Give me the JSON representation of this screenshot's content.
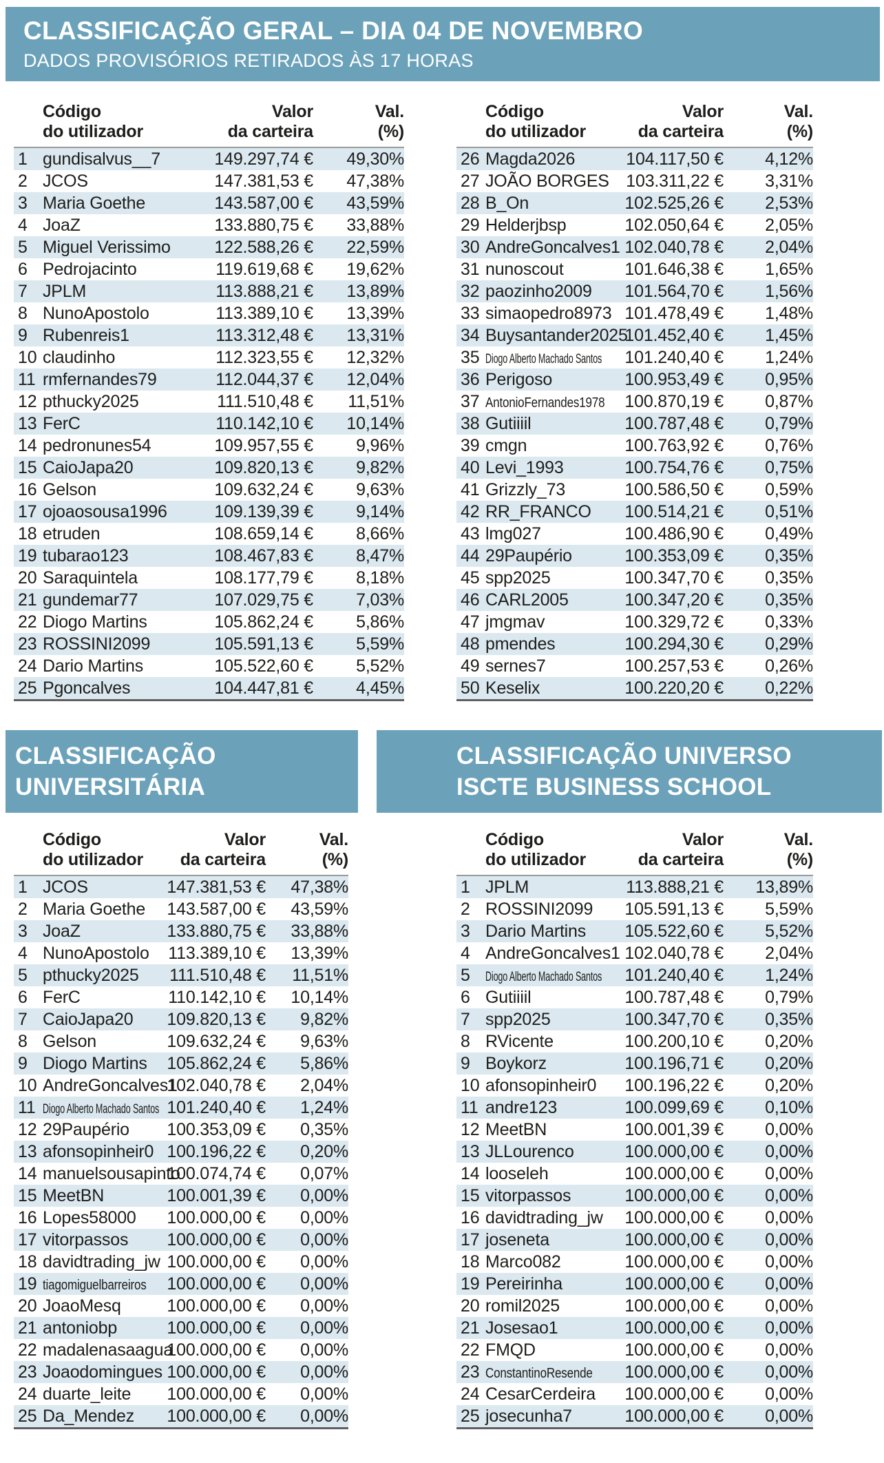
{
  "colors": {
    "header_band": "#6BA2BA",
    "row_stripe": "#DBE8F0",
    "text": "#1D1D1B",
    "rule_light": "#9A9A9A",
    "rule_dark": "#5F5F5F"
  },
  "banner": {
    "title": "CLASSIFICAÇÃO GERAL – DIA 04 DE NOVEMBRO",
    "subtitle": "DADOS PROVISÓRIOS RETIRADOS ÀS 17 HORAS"
  },
  "columns": {
    "c1a": "Código",
    "c1b": "do utilizador",
    "c2a": "Valor",
    "c2b": "da carteira",
    "c3a": "Val.",
    "c3b": "(%)"
  },
  "sections": {
    "universitaria": {
      "title_l1": "CLASSIFICAÇÃO",
      "title_l2": "UNIVERSITÁRIA"
    },
    "iscte": {
      "title_l1": "CLASSIFICAÇÃO UNIVERSO",
      "title_l2": "ISCTE BUSINESS SCHOOL"
    }
  },
  "tables": {
    "geral_1_25": {
      "rows": [
        [
          1,
          "gundisalvus__7",
          "149.297,74 €",
          "49,30%"
        ],
        [
          2,
          "JCOS",
          "147.381,53 €",
          "47,38%"
        ],
        [
          3,
          "Maria Goethe",
          "143.587,00 €",
          "43,59%"
        ],
        [
          4,
          "JoaZ",
          "133.880,75 €",
          "33,88%"
        ],
        [
          5,
          "Miguel Verissimo",
          "122.588,26 €",
          "22,59%"
        ],
        [
          6,
          "Pedrojacinto",
          "119.619,68 €",
          "19,62%"
        ],
        [
          7,
          "JPLM",
          "113.888,21 €",
          "13,89%"
        ],
        [
          8,
          "NunoApostolo",
          "113.389,10 €",
          "13,39%"
        ],
        [
          9,
          "Rubenreis1",
          "113.312,48 €",
          "13,31%"
        ],
        [
          10,
          "claudinho",
          "112.323,55 €",
          "12,32%"
        ],
        [
          11,
          "rmfernandes79",
          "112.044,37 €",
          "12,04%"
        ],
        [
          12,
          "pthucky2025",
          "111.510,48 €",
          "11,51%"
        ],
        [
          13,
          "FerC",
          "110.142,10 €",
          "10,14%"
        ],
        [
          14,
          "pedronunes54",
          "109.957,55 €",
          "9,96%"
        ],
        [
          15,
          "CaioJapa20",
          "109.820,13 €",
          "9,82%"
        ],
        [
          16,
          "Gelson",
          "109.632,24 €",
          "9,63%"
        ],
        [
          17,
          "ojoaosousa1996",
          "109.139,39 €",
          "9,14%"
        ],
        [
          18,
          "etruden",
          "108.659,14 €",
          "8,66%"
        ],
        [
          19,
          "tubarao123",
          "108.467,83 €",
          "8,47%"
        ],
        [
          20,
          "Saraquintela",
          "108.177,79 €",
          "8,18%"
        ],
        [
          21,
          "gundemar77",
          "107.029,75 €",
          "7,03%"
        ],
        [
          22,
          "Diogo Martins",
          "105.862,24 €",
          "5,86%"
        ],
        [
          23,
          "ROSSINI2099",
          "105.591,13 €",
          "5,59%"
        ],
        [
          24,
          "Dario Martins",
          "105.522,60 €",
          "5,52%"
        ],
        [
          25,
          "Pgoncalves",
          "104.447,81 €",
          "4,45%"
        ]
      ]
    },
    "geral_26_50": {
      "rows": [
        [
          26,
          "Magda2026",
          "104.117,50 €",
          "4,12%"
        ],
        [
          27,
          "JOÃO BORGES",
          "103.311,22 €",
          "3,31%"
        ],
        [
          28,
          "B_On",
          "102.525,26 €",
          "2,53%"
        ],
        [
          29,
          "Helderjbsp",
          "102.050,64 €",
          "2,05%"
        ],
        [
          30,
          "AndreGoncalves1",
          "102.040,78 €",
          "2,04%"
        ],
        [
          31,
          "nunoscout",
          "101.646,38 €",
          "1,65%"
        ],
        [
          32,
          "paozinho2009",
          "101.564,70 €",
          "1,56%"
        ],
        [
          33,
          "simaopedro8973",
          "101.478,49 €",
          "1,48%"
        ],
        [
          34,
          "Buysantander2025",
          "101.452,40 €",
          "1,45%"
        ],
        [
          35,
          "Diogo Alberto Machado Santos",
          "101.240,40 €",
          "1,24%"
        ],
        [
          36,
          "Perigoso",
          "100.953,49 €",
          "0,95%"
        ],
        [
          37,
          "AntonioFernandes1978",
          "100.870,19 €",
          "0,87%"
        ],
        [
          38,
          "Gutiiiil",
          "100.787,48 €",
          "0,79%"
        ],
        [
          39,
          "cmgn",
          "100.763,92 €",
          "0,76%"
        ],
        [
          40,
          "Levi_1993",
          "100.754,76 €",
          "0,75%"
        ],
        [
          41,
          "Grizzly_73",
          "100.586,50 €",
          "0,59%"
        ],
        [
          42,
          "RR_FRANCO",
          "100.514,21 €",
          "0,51%"
        ],
        [
          43,
          "lmg027",
          "100.486,90 €",
          "0,49%"
        ],
        [
          44,
          "29Paupério",
          "100.353,09 €",
          "0,35%"
        ],
        [
          45,
          "spp2025",
          "100.347,70 €",
          "0,35%"
        ],
        [
          46,
          "CARL2005",
          "100.347,20 €",
          "0,35%"
        ],
        [
          47,
          "jmgmav",
          "100.329,72 €",
          "0,33%"
        ],
        [
          48,
          "pmendes",
          "100.294,30 €",
          "0,29%"
        ],
        [
          49,
          "sernes7",
          "100.257,53 €",
          "0,26%"
        ],
        [
          50,
          "Keselix",
          "100.220,20 €",
          "0,22%"
        ]
      ]
    },
    "universitaria": {
      "rows": [
        [
          1,
          "JCOS",
          "147.381,53 €",
          "47,38%"
        ],
        [
          2,
          "Maria Goethe",
          "143.587,00 €",
          "43,59%"
        ],
        [
          3,
          "JoaZ",
          "133.880,75 €",
          "33,88%"
        ],
        [
          4,
          "NunoApostolo",
          "113.389,10 €",
          "13,39%"
        ],
        [
          5,
          "pthucky2025",
          "111.510,48 €",
          "11,51%"
        ],
        [
          6,
          "FerC",
          "110.142,10 €",
          "10,14%"
        ],
        [
          7,
          "CaioJapa20",
          "109.820,13 €",
          "9,82%"
        ],
        [
          8,
          "Gelson",
          "109.632,24 €",
          "9,63%"
        ],
        [
          9,
          "Diogo Martins",
          "105.862,24 €",
          "5,86%"
        ],
        [
          10,
          "AndreGoncalves1",
          "102.040,78 €",
          "2,04%"
        ],
        [
          11,
          "Diogo Alberto Machado Santos",
          "101.240,40 €",
          "1,24%"
        ],
        [
          12,
          "29Paupério",
          "100.353,09 €",
          "0,35%"
        ],
        [
          13,
          "afonsopinheir0",
          "100.196,22 €",
          "0,20%"
        ],
        [
          14,
          "manuelsousapinto",
          "100.074,74 €",
          "0,07%"
        ],
        [
          15,
          "MeetBN",
          "100.001,39 €",
          "0,00%"
        ],
        [
          16,
          "Lopes58000",
          "100.000,00 €",
          "0,00%"
        ],
        [
          17,
          "vitorpassos",
          "100.000,00 €",
          "0,00%"
        ],
        [
          18,
          "davidtrading_jw",
          "100.000,00 €",
          "0,00%"
        ],
        [
          19,
          "tiagomiguelbarreiros",
          "100.000,00 €",
          "0,00%"
        ],
        [
          20,
          "JoaoMesq",
          "100.000,00 €",
          "0,00%"
        ],
        [
          21,
          "antoniobp",
          "100.000,00 €",
          "0,00%"
        ],
        [
          22,
          "madalenasaagua",
          "100.000,00 €",
          "0,00%"
        ],
        [
          23,
          "Joaodomingues",
          "100.000,00 €",
          "0,00%"
        ],
        [
          24,
          "duarte_leite",
          "100.000,00 €",
          "0,00%"
        ],
        [
          25,
          "Da_Mendez",
          "100.000,00 €",
          "0,00%"
        ]
      ]
    },
    "iscte": {
      "rows": [
        [
          1,
          "JPLM",
          "113.888,21 €",
          "13,89%"
        ],
        [
          2,
          "ROSSINI2099",
          "105.591,13 €",
          "5,59%"
        ],
        [
          3,
          "Dario Martins",
          "105.522,60 €",
          "5,52%"
        ],
        [
          4,
          "AndreGoncalves1",
          "102.040,78 €",
          "2,04%"
        ],
        [
          5,
          "Diogo Alberto Machado Santos",
          "101.240,40 €",
          "1,24%"
        ],
        [
          6,
          "Gutiiiil",
          "100.787,48 €",
          "0,79%"
        ],
        [
          7,
          "spp2025",
          "100.347,70 €",
          "0,35%"
        ],
        [
          8,
          "RVicente",
          "100.200,10 €",
          "0,20%"
        ],
        [
          9,
          "Boykorz",
          "100.196,71 €",
          "0,20%"
        ],
        [
          10,
          "afonsopinheir0",
          "100.196,22 €",
          "0,20%"
        ],
        [
          11,
          "andre123",
          "100.099,69 €",
          "0,10%"
        ],
        [
          12,
          "MeetBN",
          "100.001,39 €",
          "0,00%"
        ],
        [
          13,
          "JLLourenco",
          "100.000,00 €",
          "0,00%"
        ],
        [
          14,
          "looseleh",
          "100.000,00 €",
          "0,00%"
        ],
        [
          15,
          "vitorpassos",
          "100.000,00 €",
          "0,00%"
        ],
        [
          16,
          "davidtrading_jw",
          "100.000,00 €",
          "0,00%"
        ],
        [
          17,
          "joseneta",
          "100.000,00 €",
          "0,00%"
        ],
        [
          18,
          "Marco082",
          "100.000,00 €",
          "0,00%"
        ],
        [
          19,
          "Pereirinha",
          "100.000,00 €",
          "0,00%"
        ],
        [
          20,
          "romil2025",
          "100.000,00 €",
          "0,00%"
        ],
        [
          21,
          "Josesao1",
          "100.000,00 €",
          "0,00%"
        ],
        [
          22,
          "FMQD",
          "100.000,00 €",
          "0,00%"
        ],
        [
          23,
          "ConstantinoResende",
          "100.000,00 €",
          "0,00%"
        ],
        [
          24,
          "CesarCerdeira",
          "100.000,00 €",
          "0,00%"
        ],
        [
          25,
          "josecunha7",
          "100.000,00 €",
          "0,00%"
        ]
      ]
    }
  }
}
